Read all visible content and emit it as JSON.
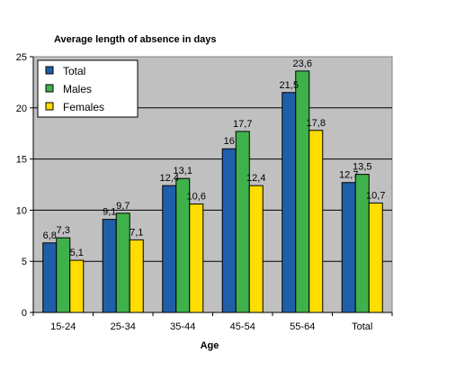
{
  "chart_data": {
    "type": "bar",
    "title": "Average length of absence in days",
    "xlabel": "Age",
    "ylabel": "",
    "categories": [
      "15-24",
      "25-34",
      "35-44",
      "45-54",
      "55-64",
      "Total"
    ],
    "series": [
      {
        "name": "Total",
        "color": "#1f5faa",
        "values": [
          6.8,
          9.1,
          12.4,
          16,
          21.5,
          12.7
        ],
        "labels": [
          "6,8",
          "9,1",
          "12,4",
          "16",
          "21,5",
          "12,7"
        ]
      },
      {
        "name": "Males",
        "color": "#3fb14a",
        "values": [
          7.3,
          9.7,
          13.1,
          17.7,
          23.6,
          13.5
        ],
        "labels": [
          "7,3",
          "9,7",
          "13,1",
          "17,7",
          "23,6",
          "13,5"
        ]
      },
      {
        "name": "Females",
        "color": "#ffdd00",
        "values": [
          5.1,
          7.1,
          10.6,
          12.4,
          17.8,
          10.7
        ],
        "labels": [
          "5,1",
          "7,1",
          "10,6",
          "12,4",
          "17,8",
          "10,7"
        ]
      }
    ],
    "ylim": [
      0,
      25
    ],
    "yticks": [
      0,
      5,
      10,
      15,
      20,
      25
    ],
    "grid": true,
    "legend": "top-left",
    "plot_background": "#c0c0c0"
  }
}
